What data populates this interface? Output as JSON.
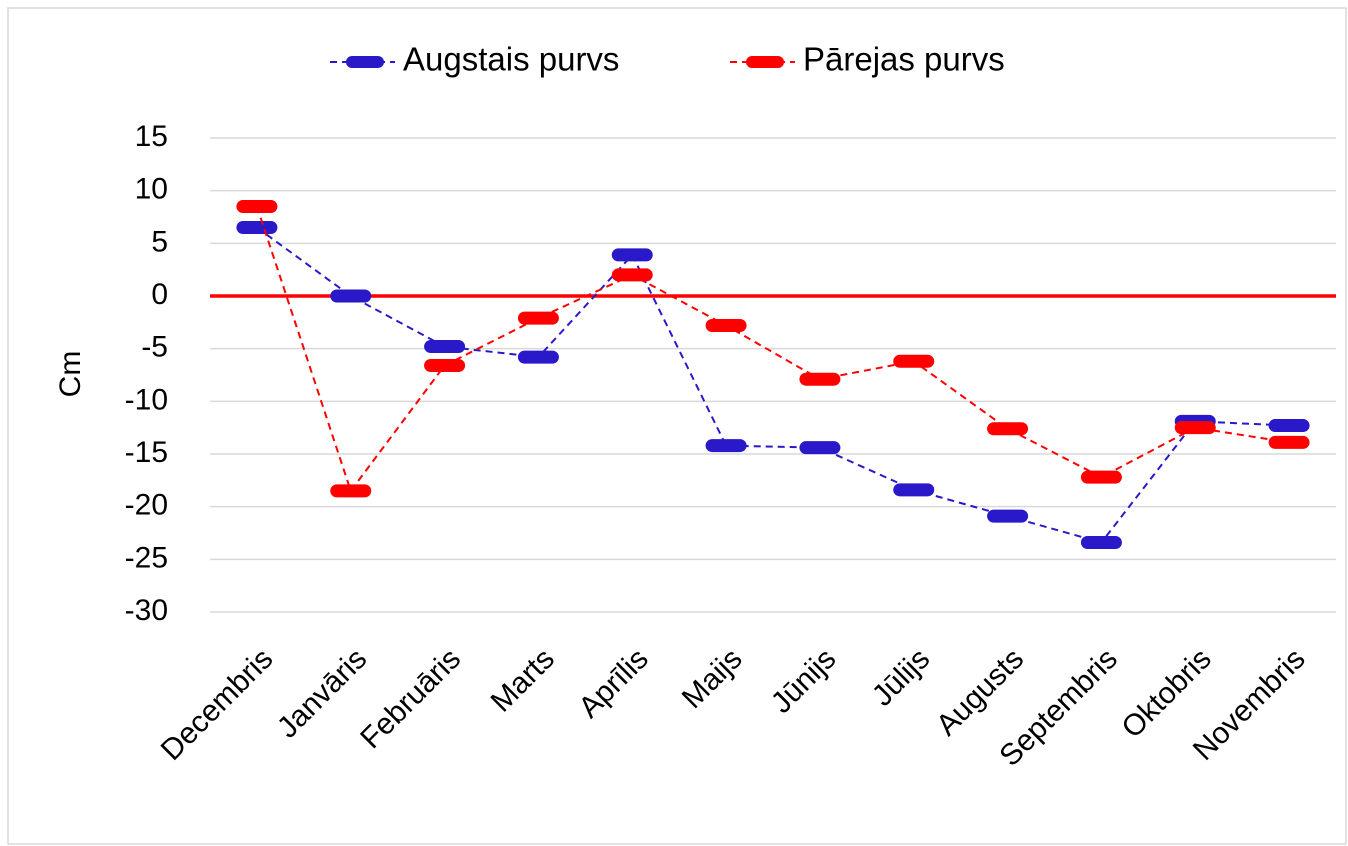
{
  "chart_data": {
    "type": "line",
    "y_label": "Cm",
    "categories": [
      "Decembris",
      "Janvāris",
      "Februāris",
      "Marts",
      "Aprīlis",
      "Maijs",
      "Jūnijs",
      "Jūlijs",
      "Augusts",
      "Septembris",
      "Oktobris",
      "Novembris"
    ],
    "series": [
      {
        "name": "Augstais purvs",
        "color": "#2a19c9",
        "values": [
          6.5,
          0,
          -4.8,
          -5.8,
          3.9,
          -14.2,
          -14.4,
          -18.4,
          -20.9,
          -23.4,
          -11.9,
          -12.3
        ]
      },
      {
        "name": "Pārejas purvs",
        "color": "#ff0000",
        "values": [
          8.5,
          -18.5,
          -6.6,
          -2.1,
          2.0,
          -2.8,
          -7.9,
          -6.2,
          -12.6,
          -17.2,
          -12.5,
          -13.9
        ]
      }
    ],
    "ylim": [
      -30,
      15
    ],
    "yticks": [
      -30,
      -25,
      -20,
      -15,
      -10,
      -5,
      0,
      5,
      10,
      15
    ],
    "grid": true,
    "zero_line_color": "#ff0000",
    "legend": "top",
    "line_style": "dashed"
  }
}
